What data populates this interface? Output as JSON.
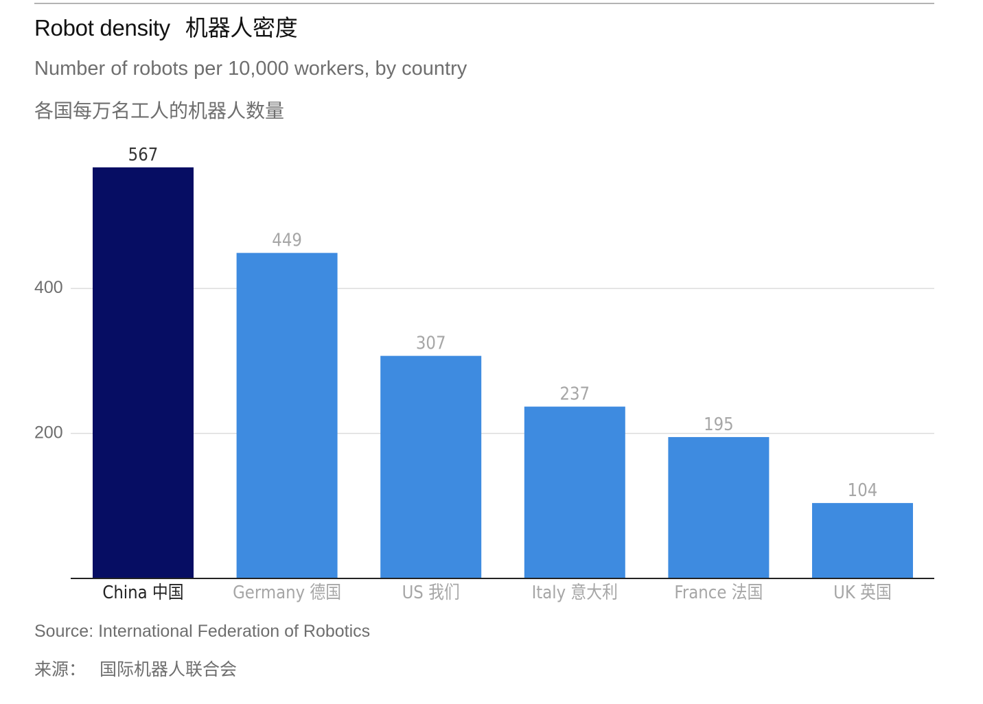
{
  "header": {
    "title_en": "Robot density",
    "title_zh": "机器人密度",
    "subtitle_en": "Number of robots per 10,000 workers, by country",
    "subtitle_zh": "各国每万名工人的机器人数量"
  },
  "footer": {
    "source_en": "Source: International Federation of Robotics",
    "source_zh_label": "来源：",
    "source_zh": "国际机器人联合会"
  },
  "colors": {
    "highlight": "#060d63",
    "bar": "#3e8be0",
    "highlight_label": "#333333",
    "muted_label": "#a6a6a6",
    "grid": "#dcdcdc",
    "axis": "#222222"
  },
  "chart_data": {
    "type": "bar",
    "title": "Robot density  机器人密度",
    "subtitle": "Number of robots per 10,000 workers, by country",
    "categories": [
      "China  中国",
      "Germany  德国",
      "US  我们",
      "Italy  意大利",
      "France  法国",
      "UK  英国"
    ],
    "values": [
      567,
      449,
      307,
      237,
      195,
      104
    ],
    "highlight_index": 0,
    "yticks": [
      200,
      400
    ],
    "ylim": [
      0,
      600
    ],
    "grid": true,
    "xlabel": "",
    "ylabel": ""
  }
}
